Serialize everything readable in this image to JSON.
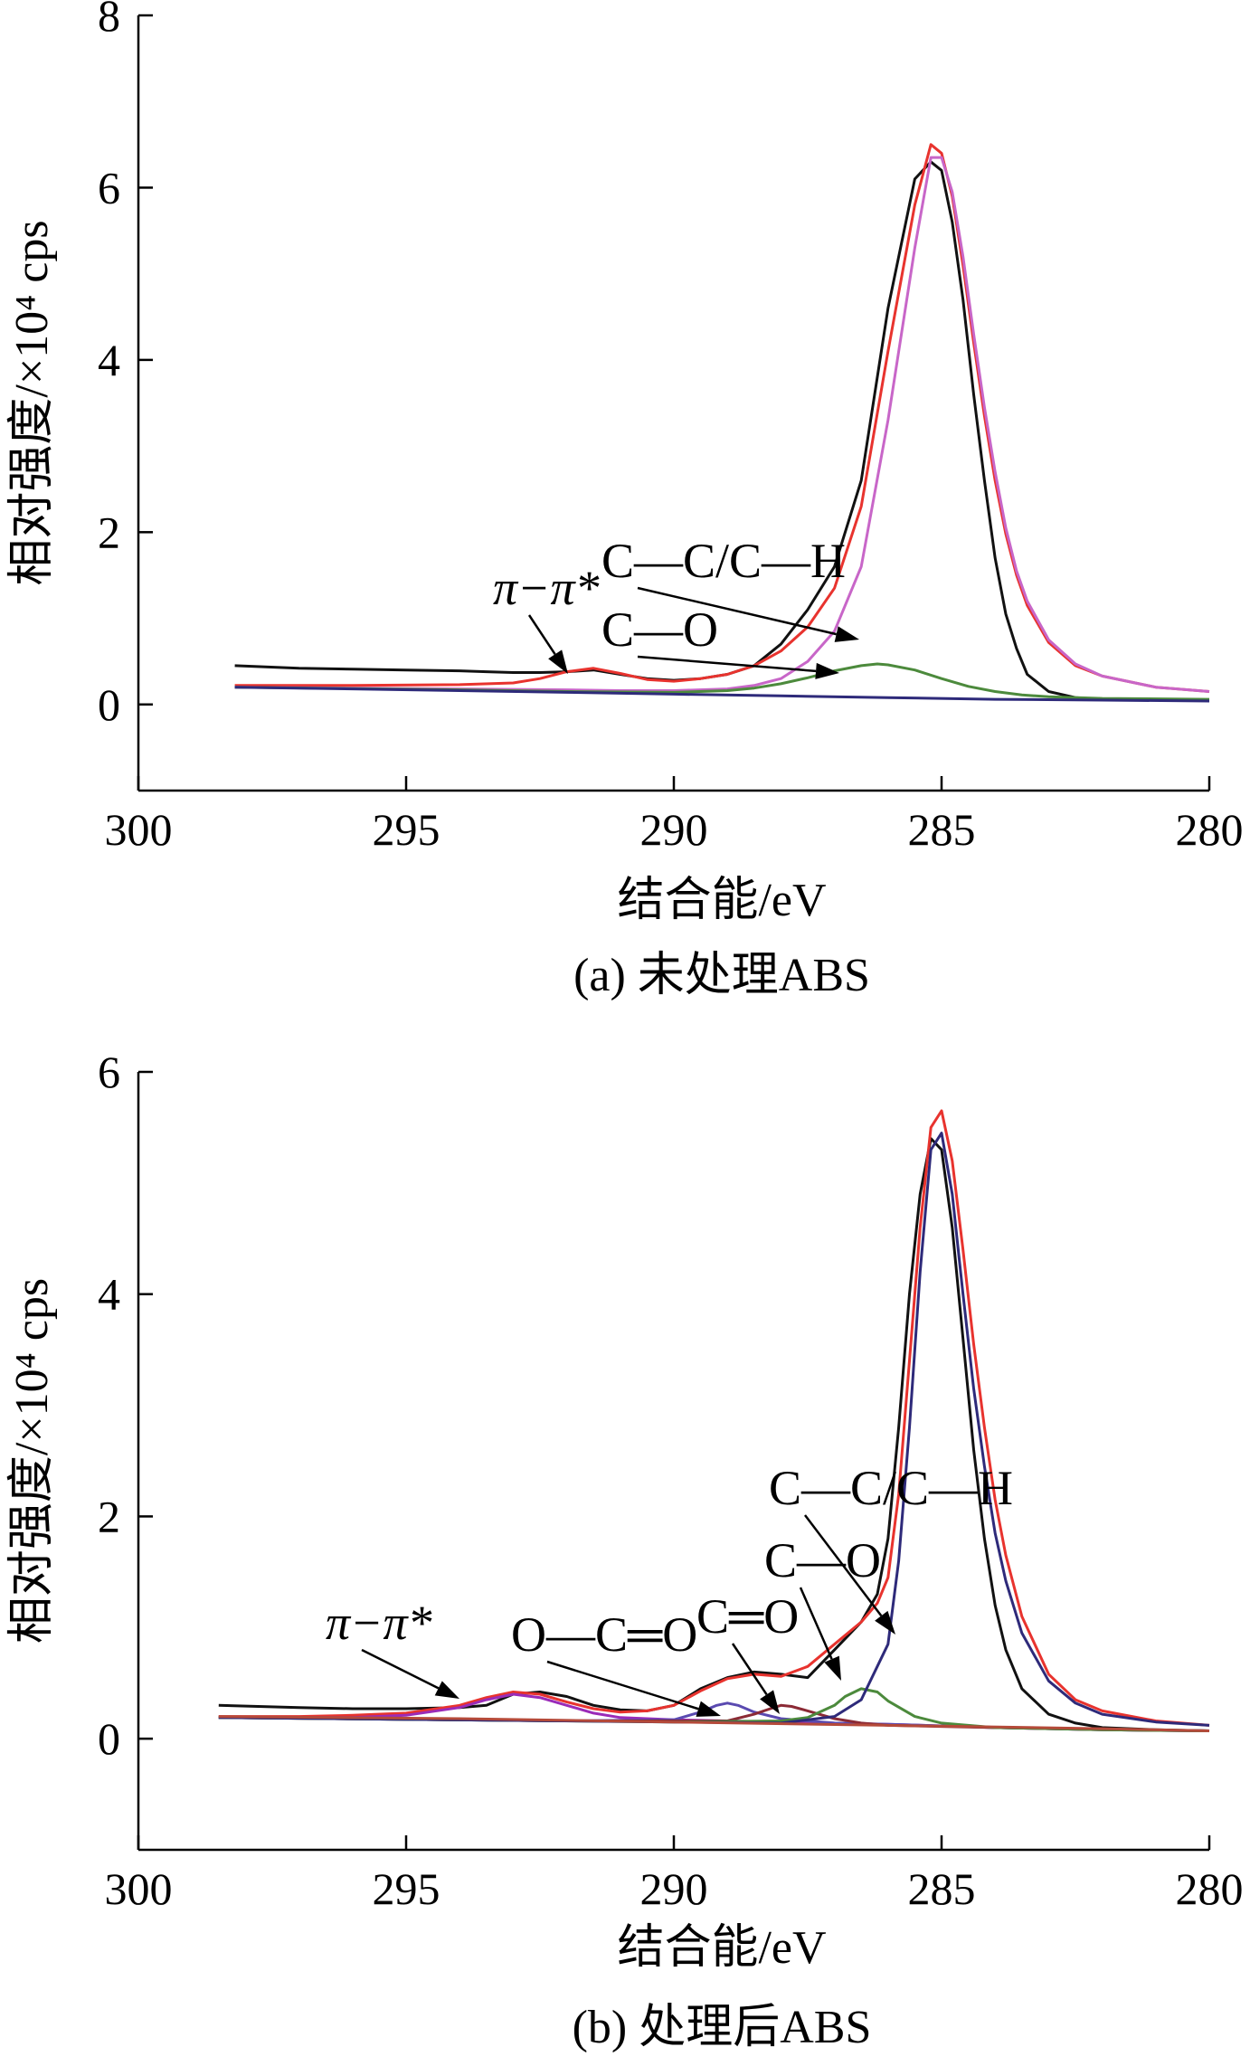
{
  "chart_data": [
    {
      "type": "line",
      "panel": "a",
      "caption": "(a) 未处理ABS",
      "xlabel": "结合能/eV",
      "ylabel": "相对强度/×10⁴ cps",
      "xlim": [
        300,
        280
      ],
      "ylim": [
        -1,
        8
      ],
      "x_ticks": [
        "300",
        "295",
        "290",
        "285",
        "280"
      ],
      "y_ticks": [
        "0",
        "2",
        "4",
        "6",
        "8"
      ],
      "annotations": [
        {
          "text": "π−π*",
          "italic": true,
          "target": [
            291.4,
            0.38
          ]
        },
        {
          "text": "C—C/C—H",
          "italic": false,
          "target": [
            286.9,
            0.9
          ]
        },
        {
          "text": "C—O",
          "italic": false,
          "target": [
            286.8,
            0.4
          ]
        }
      ],
      "series": [
        {
          "color": "#111111",
          "x": [
            298.2,
            297,
            296,
            295,
            294,
            293.5,
            293,
            292.5,
            292,
            291.5,
            291,
            290.5,
            290,
            289.5,
            289,
            288.5,
            288,
            287.5,
            287,
            286.5,
            286,
            285.5,
            285.2,
            285,
            284.8,
            284.6,
            284.4,
            284.2,
            284,
            283.8,
            283.6,
            283.4,
            283,
            282.5,
            282,
            281,
            280
          ],
          "y": [
            0.45,
            0.42,
            0.41,
            0.4,
            0.39,
            0.38,
            0.37,
            0.37,
            0.38,
            0.4,
            0.35,
            0.3,
            0.28,
            0.3,
            0.35,
            0.45,
            0.7,
            1.1,
            1.6,
            2.6,
            4.6,
            6.1,
            6.3,
            6.2,
            5.6,
            4.7,
            3.6,
            2.6,
            1.7,
            1.05,
            0.65,
            0.35,
            0.15,
            0.08,
            0.06,
            0.05,
            0.05
          ]
        },
        {
          "color": "#e8332e",
          "x": [
            298.2,
            296,
            294,
            293,
            292.5,
            292,
            291.5,
            291,
            290.5,
            290,
            289.5,
            289,
            288.5,
            288,
            287.5,
            287,
            286.5,
            286,
            285.5,
            285.2,
            285,
            284.8,
            284.6,
            284.4,
            284.2,
            284,
            283.8,
            283.6,
            283.4,
            283,
            282.5,
            282,
            281,
            280
          ],
          "y": [
            0.22,
            0.22,
            0.23,
            0.25,
            0.3,
            0.38,
            0.42,
            0.36,
            0.29,
            0.27,
            0.3,
            0.35,
            0.45,
            0.62,
            0.9,
            1.35,
            2.3,
            4.1,
            5.8,
            6.5,
            6.4,
            5.9,
            5.1,
            4.2,
            3.35,
            2.6,
            1.98,
            1.5,
            1.15,
            0.72,
            0.45,
            0.33,
            0.2,
            0.15
          ]
        },
        {
          "color": "#c866c8",
          "x": [
            298.2,
            296,
            294,
            292,
            291,
            290,
            289,
            288.5,
            288,
            287.5,
            287,
            286.5,
            286,
            285.5,
            285.2,
            285,
            284.8,
            284.6,
            284.4,
            284.2,
            284,
            283.8,
            283.6,
            283.4,
            283,
            282.5,
            282,
            281,
            280
          ],
          "y": [
            0.2,
            0.19,
            0.18,
            0.17,
            0.16,
            0.16,
            0.18,
            0.22,
            0.3,
            0.5,
            0.85,
            1.6,
            3.3,
            5.3,
            6.35,
            6.35,
            5.95,
            5.2,
            4.3,
            3.45,
            2.7,
            2.05,
            1.55,
            1.2,
            0.75,
            0.47,
            0.33,
            0.2,
            0.15
          ]
        },
        {
          "color": "#4c8a3c",
          "x": [
            298.2,
            294,
            292,
            290,
            289,
            288.5,
            288,
            287.5,
            287,
            286.5,
            286.2,
            286,
            285.5,
            285,
            284.5,
            284,
            283.5,
            283,
            282,
            280
          ],
          "y": [
            0.2,
            0.17,
            0.15,
            0.14,
            0.16,
            0.19,
            0.24,
            0.31,
            0.39,
            0.45,
            0.47,
            0.46,
            0.4,
            0.3,
            0.21,
            0.15,
            0.11,
            0.09,
            0.07,
            0.06
          ]
        },
        {
          "color": "#2e2a7a",
          "x": [
            298.2,
            296,
            294,
            292,
            290,
            288,
            286,
            284,
            282,
            280
          ],
          "y": [
            0.2,
            0.18,
            0.16,
            0.14,
            0.12,
            0.1,
            0.08,
            0.06,
            0.05,
            0.04
          ]
        }
      ]
    },
    {
      "type": "line",
      "panel": "b",
      "caption": "(b) 处理后ABS",
      "xlabel": "结合能/eV",
      "ylabel": "相对强度/×10⁴ cps",
      "xlim": [
        300,
        280
      ],
      "ylim": [
        -1,
        6
      ],
      "x_ticks": [
        "300",
        "295",
        "290",
        "285",
        "280"
      ],
      "y_ticks": [
        "0",
        "2",
        "4",
        "6"
      ],
      "annotations": [
        {
          "text": "π−π*",
          "italic": true,
          "target": [
            294,
            0.28
          ]
        },
        {
          "text": "O—C═O",
          "italic": false,
          "target": [
            288.9,
            0.23
          ]
        },
        {
          "text": "C═O",
          "italic": false,
          "target": [
            287.8,
            0.22
          ]
        },
        {
          "text": "C—O",
          "italic": false,
          "target": [
            286.9,
            0.35
          ]
        },
        {
          "text": "C—C/C—H",
          "italic": false,
          "target": [
            285.9,
            0.72
          ]
        }
      ],
      "series": [
        {
          "color": "#111111",
          "x": [
            298.5,
            297,
            296,
            295,
            294,
            293.5,
            293,
            292.5,
            292,
            291.5,
            291,
            290.5,
            290,
            289.5,
            289,
            288.5,
            288,
            287.5,
            287,
            286.5,
            286.2,
            286,
            285.8,
            285.6,
            285.4,
            285.2,
            285,
            284.8,
            284.6,
            284.4,
            284.2,
            284,
            283.8,
            283.5,
            283,
            282.5,
            282,
            281,
            280
          ],
          "y": [
            0.3,
            0.28,
            0.27,
            0.27,
            0.28,
            0.3,
            0.4,
            0.42,
            0.38,
            0.3,
            0.26,
            0.25,
            0.3,
            0.45,
            0.55,
            0.6,
            0.58,
            0.55,
            0.8,
            1.05,
            1.3,
            1.8,
            2.8,
            4.0,
            4.9,
            5.4,
            5.3,
            4.6,
            3.6,
            2.6,
            1.8,
            1.2,
            0.8,
            0.45,
            0.22,
            0.14,
            0.1,
            0.08,
            0.07
          ]
        },
        {
          "color": "#e8332e",
          "x": [
            298.5,
            297,
            296,
            295,
            294,
            293.5,
            293,
            292.5,
            292,
            291.5,
            291,
            290.5,
            290,
            289.5,
            289,
            288.5,
            288,
            287.5,
            287,
            286.5,
            286.2,
            286,
            285.8,
            285.6,
            285.4,
            285.2,
            285,
            284.8,
            284.6,
            284.4,
            284.2,
            284,
            283.8,
            283.5,
            283,
            282.5,
            282,
            281,
            280
          ],
          "y": [
            0.2,
            0.2,
            0.21,
            0.23,
            0.3,
            0.37,
            0.42,
            0.4,
            0.33,
            0.27,
            0.24,
            0.25,
            0.3,
            0.43,
            0.54,
            0.58,
            0.56,
            0.65,
            0.85,
            1.05,
            1.22,
            1.45,
            2.2,
            3.4,
            4.6,
            5.5,
            5.65,
            5.2,
            4.4,
            3.55,
            2.8,
            2.15,
            1.65,
            1.1,
            0.58,
            0.35,
            0.25,
            0.16,
            0.12
          ]
        },
        {
          "color": "#9a2bb8",
          "x": [
            298.5,
            296,
            295,
            294,
            293.5,
            293,
            292.5,
            292,
            291.5,
            291,
            290,
            288,
            286,
            284,
            282,
            280
          ],
          "y": [
            0.19,
            0.19,
            0.21,
            0.28,
            0.35,
            0.4,
            0.37,
            0.3,
            0.23,
            0.19,
            0.17,
            0.15,
            0.13,
            0.1,
            0.08,
            0.07
          ]
        },
        {
          "color": "#5a4ab0",
          "x": [
            298.5,
            292,
            290,
            289.5,
            289.2,
            289,
            288.8,
            288.5,
            288,
            287,
            286,
            284,
            282,
            280
          ],
          "y": [
            0.19,
            0.16,
            0.17,
            0.24,
            0.3,
            0.32,
            0.3,
            0.24,
            0.18,
            0.14,
            0.13,
            0.1,
            0.08,
            0.07
          ]
        },
        {
          "color": "#8b2a35",
          "x": [
            298.5,
            292,
            289,
            288.5,
            288.2,
            288,
            287.8,
            287.5,
            287,
            286.5,
            286,
            284,
            282,
            280
          ],
          "y": [
            0.19,
            0.16,
            0.16,
            0.22,
            0.27,
            0.3,
            0.29,
            0.25,
            0.18,
            0.14,
            0.12,
            0.1,
            0.08,
            0.07
          ]
        },
        {
          "color": "#4c8a3c",
          "x": [
            298.5,
            292,
            290,
            288,
            287.5,
            287,
            286.8,
            286.5,
            286.2,
            286,
            285.5,
            285,
            284,
            282,
            280
          ],
          "y": [
            0.19,
            0.16,
            0.15,
            0.16,
            0.19,
            0.3,
            0.38,
            0.45,
            0.42,
            0.34,
            0.2,
            0.14,
            0.1,
            0.08,
            0.07
          ]
        },
        {
          "color": "#2e2a7a",
          "x": [
            298.5,
            290,
            288,
            287,
            286.5,
            286,
            285.8,
            285.6,
            285.4,
            285.2,
            285,
            284.8,
            284.6,
            284.4,
            284.2,
            284,
            283.8,
            283.5,
            283,
            282.5,
            282,
            281,
            280
          ],
          "y": [
            0.19,
            0.15,
            0.14,
            0.2,
            0.35,
            0.85,
            1.6,
            2.8,
            4.2,
            5.3,
            5.45,
            4.9,
            4.0,
            3.15,
            2.45,
            1.85,
            1.42,
            0.95,
            0.52,
            0.32,
            0.22,
            0.15,
            0.12
          ]
        },
        {
          "color": "#b54a3a",
          "x": [
            298.5,
            294,
            290,
            286,
            282,
            280
          ],
          "y": [
            0.2,
            0.18,
            0.15,
            0.12,
            0.09,
            0.07
          ]
        }
      ]
    }
  ]
}
